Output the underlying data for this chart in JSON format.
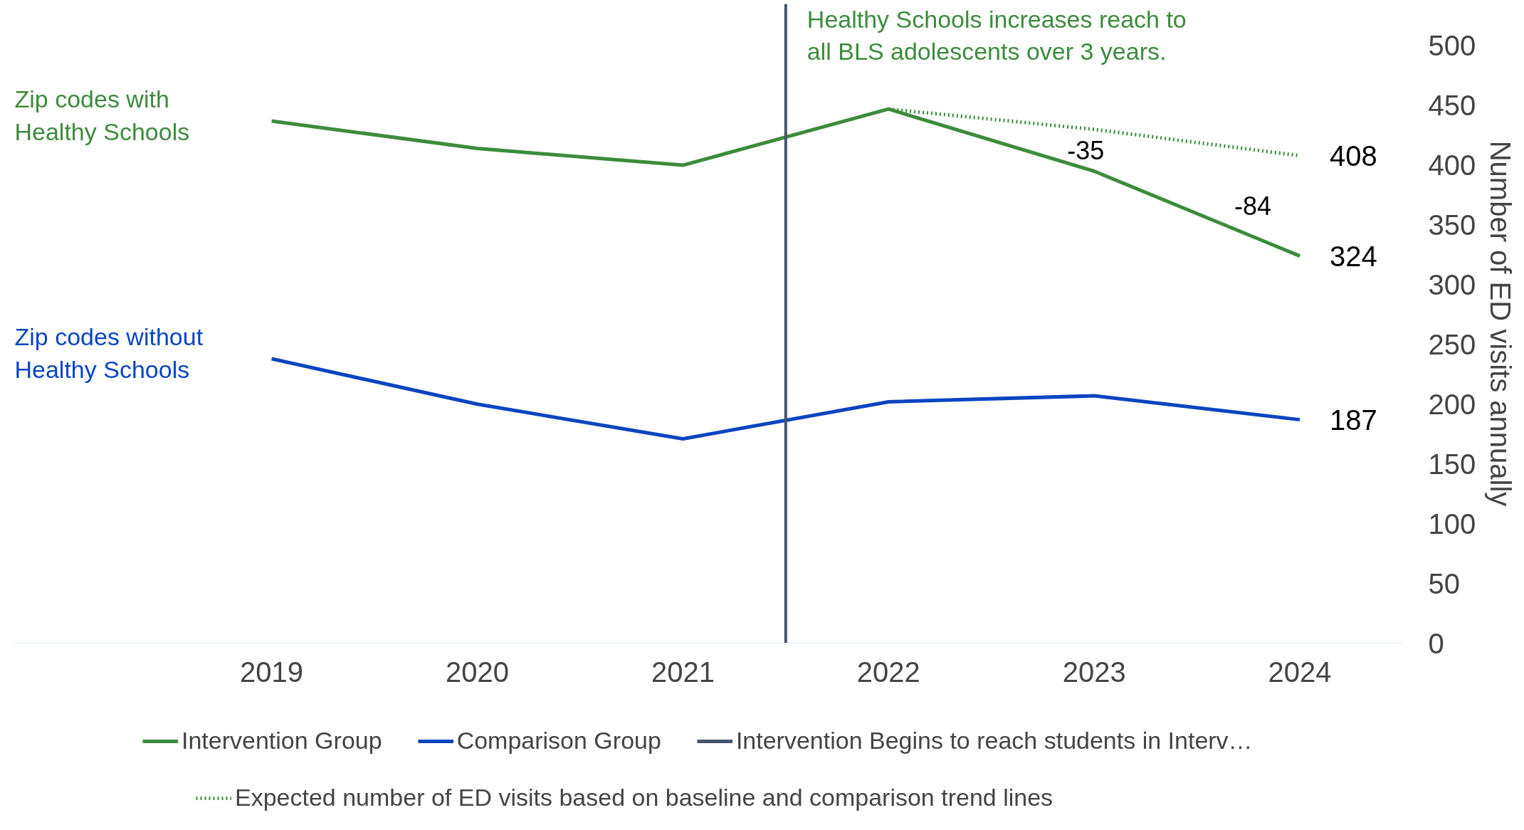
{
  "chart_data": {
    "type": "line",
    "x": [
      2019,
      2020,
      2021,
      2022,
      2023,
      2024
    ],
    "xlim": [
      2017.75,
      2024.5
    ],
    "xticks": [
      2019,
      2020,
      2021,
      2022,
      2023,
      2024
    ],
    "ylim": [
      0,
      535
    ],
    "yticks": [
      0,
      50,
      100,
      150,
      200,
      250,
      300,
      350,
      400,
      450,
      500
    ],
    "ylabel": "Number of ED visits annually",
    "legend": "bottom",
    "series": [
      {
        "name": "Intervention Group",
        "color": "#3d8b3d",
        "values": [
          437,
          414,
          400,
          447,
          395,
          324
        ],
        "value_labels": [
          null,
          null,
          null,
          null,
          null,
          "324"
        ]
      },
      {
        "name": "Comparison Group",
        "color": "#0a45c0",
        "values": [
          238,
          200,
          171,
          202,
          207,
          187
        ],
        "value_labels": [
          null,
          null,
          null,
          null,
          null,
          "187"
        ]
      },
      {
        "name": "Expected number of ED visits based on baseline and comparison trend lines",
        "color": "#3d8b3d",
        "line_style": "dotted",
        "x": [
          2022,
          2023,
          2024
        ],
        "values": [
          447,
          430,
          408
        ],
        "value_labels": [
          null,
          null,
          "408"
        ]
      }
    ],
    "ref_lines": [
      {
        "axis": "x",
        "value": 2021.5,
        "color": "#44546a",
        "label": "Healthy Schools increases reach to all BLS adolescents over 3 years."
      }
    ],
    "annotations": [
      "Intervention Begins to reach students in Interv…",
      "Zip codes with\nHealthy Schools",
      "Zip codes without\nHealthy Schools",
      "-35",
      "-84"
    ]
  }
}
